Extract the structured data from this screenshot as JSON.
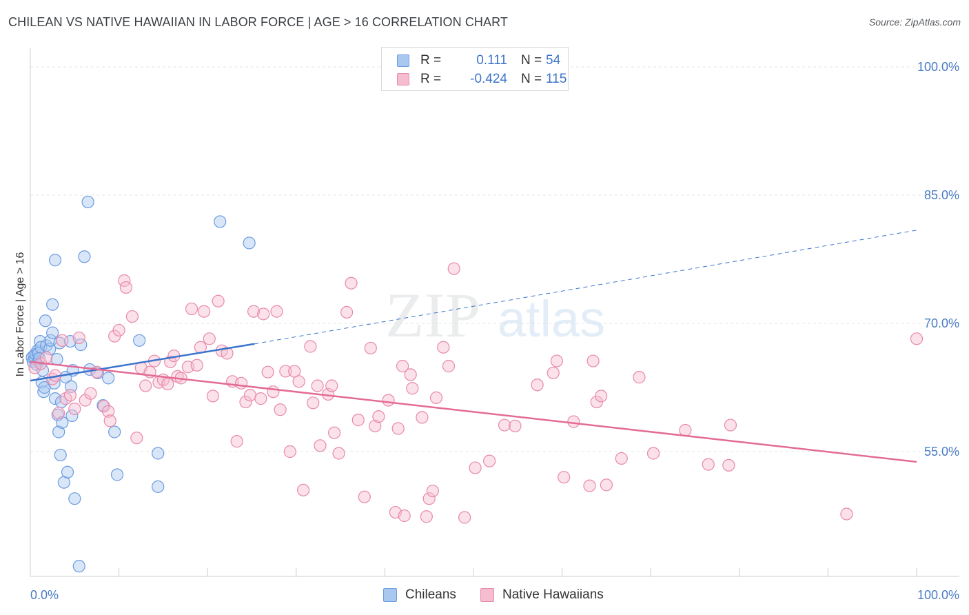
{
  "title": "CHILEAN VS NATIVE HAWAIIAN IN LABOR FORCE | AGE > 16 CORRELATION CHART",
  "source": "Source: ZipAtlas.com",
  "watermark": {
    "zip": "ZIP",
    "atlas": "atlas"
  },
  "legend": {
    "r_label": "R =",
    "n_label": "N =",
    "rows": [
      {
        "name": "Chileans",
        "r": "0.111",
        "n": "54",
        "color": "#a9c8f0",
        "stroke": "#6b9be0"
      },
      {
        "name": "Native Hawaiians",
        "r": "-0.424",
        "n": "115",
        "color": "#f6bcd0",
        "stroke": "#e889a9"
      }
    ]
  },
  "chart_data": {
    "type": "scatter",
    "title": "CHILEAN VS NATIVE HAWAIIAN IN LABOR FORCE | AGE > 16 CORRELATION CHART",
    "xlabel": "",
    "ylabel": "In Labor Force | Age > 16",
    "xlim": [
      0,
      100
    ],
    "ylim": [
      40,
      104.4
    ],
    "x_tick_labels": [
      "0.0%",
      "100.0%"
    ],
    "y_ticks": [
      55,
      70,
      85,
      100
    ],
    "y_tick_labels": [
      "55.0%",
      "70.0%",
      "85.0%",
      "100.0%"
    ],
    "grid": true,
    "series": [
      {
        "name": "Chileans",
        "color": "#a9c8f0",
        "stroke": "#6b9be0",
        "trend": {
          "x0": 0,
          "y0": 63.3,
          "x1": 25.3,
          "y1": 67.6,
          "dash_to_x": 100,
          "dash_to_y": 80.9,
          "color": "#3a74cc"
        },
        "points": [
          [
            0.2,
            66.0
          ],
          [
            0.3,
            65.5
          ],
          [
            0.4,
            66.2
          ],
          [
            0.5,
            65.8
          ],
          [
            0.6,
            66.4
          ],
          [
            0.7,
            65.2
          ],
          [
            0.8,
            66.8
          ],
          [
            0.9,
            66.5
          ],
          [
            1.0,
            65.9
          ],
          [
            1.1,
            67.9
          ],
          [
            1.2,
            67.2
          ],
          [
            1.3,
            63.1
          ],
          [
            1.4,
            64.5
          ],
          [
            1.5,
            62.0
          ],
          [
            1.6,
            62.5
          ],
          [
            1.7,
            70.3
          ],
          [
            1.8,
            67.4
          ],
          [
            2.2,
            67.0
          ],
          [
            2.3,
            68.0
          ],
          [
            2.5,
            72.2
          ],
          [
            2.5,
            68.9
          ],
          [
            2.7,
            63.0
          ],
          [
            2.8,
            61.2
          ],
          [
            2.8,
            77.4
          ],
          [
            3.0,
            65.8
          ],
          [
            3.1,
            59.3
          ],
          [
            3.2,
            57.3
          ],
          [
            3.3,
            67.7
          ],
          [
            3.4,
            54.6
          ],
          [
            3.5,
            60.8
          ],
          [
            3.6,
            58.4
          ],
          [
            3.8,
            51.4
          ],
          [
            4.0,
            63.7
          ],
          [
            4.2,
            52.6
          ],
          [
            4.5,
            67.9
          ],
          [
            4.6,
            62.6
          ],
          [
            4.7,
            59.2
          ],
          [
            4.8,
            64.5
          ],
          [
            5.0,
            49.5
          ],
          [
            5.5,
            41.6
          ],
          [
            5.7,
            67.5
          ],
          [
            6.1,
            77.8
          ],
          [
            6.5,
            84.2
          ],
          [
            6.7,
            64.6
          ],
          [
            7.6,
            64.2
          ],
          [
            8.2,
            60.4
          ],
          [
            8.8,
            63.6
          ],
          [
            9.5,
            57.3
          ],
          [
            9.8,
            52.3
          ],
          [
            12.3,
            68.0
          ],
          [
            14.4,
            54.8
          ],
          [
            14.4,
            50.9
          ],
          [
            21.4,
            81.9
          ],
          [
            24.7,
            79.4
          ]
        ]
      },
      {
        "name": "Native Hawaiians",
        "color": "#f6bcd0",
        "stroke": "#e889a9",
        "trend": {
          "x0": 0,
          "y0": 65.5,
          "x1": 100,
          "y1": 53.8,
          "color": "#e36b96"
        },
        "points": [
          [
            0.5,
            64.8
          ],
          [
            1.2,
            65.3
          ],
          [
            1.8,
            66.0
          ],
          [
            2.5,
            63.5
          ],
          [
            2.8,
            63.9
          ],
          [
            3.2,
            59.5
          ],
          [
            3.6,
            68.0
          ],
          [
            4.0,
            61.2
          ],
          [
            4.5,
            61.6
          ],
          [
            5.0,
            60.0
          ],
          [
            5.5,
            68.3
          ],
          [
            6.2,
            61.0
          ],
          [
            6.8,
            61.8
          ],
          [
            7.5,
            64.3
          ],
          [
            8.3,
            60.3
          ],
          [
            8.8,
            59.7
          ],
          [
            9.0,
            58.6
          ],
          [
            9.5,
            68.5
          ],
          [
            10.0,
            69.2
          ],
          [
            10.6,
            75.0
          ],
          [
            10.8,
            74.2
          ],
          [
            11.5,
            70.8
          ],
          [
            12.0,
            56.6
          ],
          [
            12.5,
            64.8
          ],
          [
            13.0,
            62.7
          ],
          [
            13.5,
            64.3
          ],
          [
            14.0,
            65.6
          ],
          [
            14.5,
            63.1
          ],
          [
            15.0,
            63.4
          ],
          [
            15.5,
            62.9
          ],
          [
            15.8,
            65.5
          ],
          [
            16.2,
            66.2
          ],
          [
            16.6,
            63.8
          ],
          [
            17.0,
            63.6
          ],
          [
            17.8,
            64.9
          ],
          [
            18.2,
            71.7
          ],
          [
            18.8,
            65.1
          ],
          [
            19.2,
            67.2
          ],
          [
            19.6,
            71.4
          ],
          [
            20.2,
            68.2
          ],
          [
            20.6,
            61.5
          ],
          [
            21.2,
            72.6
          ],
          [
            21.6,
            66.8
          ],
          [
            22.2,
            66.5
          ],
          [
            22.8,
            63.2
          ],
          [
            23.3,
            56.2
          ],
          [
            23.8,
            63.0
          ],
          [
            24.3,
            60.8
          ],
          [
            24.8,
            61.6
          ],
          [
            25.2,
            71.4
          ],
          [
            26.0,
            61.2
          ],
          [
            26.3,
            71.1
          ],
          [
            26.8,
            64.3
          ],
          [
            27.4,
            62.0
          ],
          [
            27.8,
            71.4
          ],
          [
            28.2,
            59.9
          ],
          [
            28.8,
            64.4
          ],
          [
            29.3,
            55.0
          ],
          [
            29.8,
            64.4
          ],
          [
            30.3,
            63.2
          ],
          [
            30.8,
            50.5
          ],
          [
            31.6,
            67.3
          ],
          [
            31.9,
            60.7
          ],
          [
            32.4,
            62.7
          ],
          [
            32.7,
            55.7
          ],
          [
            33.6,
            61.7
          ],
          [
            34.0,
            62.7
          ],
          [
            34.3,
            57.2
          ],
          [
            34.8,
            54.8
          ],
          [
            35.7,
            71.3
          ],
          [
            36.2,
            74.7
          ],
          [
            37.0,
            58.7
          ],
          [
            37.7,
            49.7
          ],
          [
            38.4,
            67.1
          ],
          [
            38.9,
            58.0
          ],
          [
            39.3,
            59.1
          ],
          [
            40.4,
            61.0
          ],
          [
            41.2,
            47.9
          ],
          [
            41.5,
            57.7
          ],
          [
            42.0,
            65.0
          ],
          [
            42.2,
            47.5
          ],
          [
            42.9,
            64.0
          ],
          [
            43.1,
            62.4
          ],
          [
            44.2,
            59.0
          ],
          [
            44.7,
            47.4
          ],
          [
            45.0,
            49.5
          ],
          [
            45.4,
            50.4
          ],
          [
            45.8,
            61.3
          ],
          [
            46.6,
            67.2
          ],
          [
            47.2,
            65.0
          ],
          [
            47.8,
            76.4
          ],
          [
            49.0,
            47.3
          ],
          [
            50.2,
            53.1
          ],
          [
            51.8,
            53.9
          ],
          [
            53.5,
            58.1
          ],
          [
            54.7,
            58.0
          ],
          [
            57.2,
            62.8
          ],
          [
            59.0,
            64.2
          ],
          [
            59.4,
            65.6
          ],
          [
            60.2,
            52.0
          ],
          [
            61.3,
            58.5
          ],
          [
            63.1,
            51.0
          ],
          [
            63.5,
            65.6
          ],
          [
            63.9,
            60.8
          ],
          [
            64.4,
            61.5
          ],
          [
            65.0,
            51.1
          ],
          [
            66.7,
            54.2
          ],
          [
            68.7,
            63.7
          ],
          [
            70.3,
            54.8
          ],
          [
            73.9,
            57.5
          ],
          [
            76.5,
            53.5
          ],
          [
            78.8,
            53.4
          ],
          [
            79.0,
            58.1
          ],
          [
            92.1,
            47.7
          ],
          [
            100.0,
            68.2
          ]
        ]
      }
    ]
  }
}
